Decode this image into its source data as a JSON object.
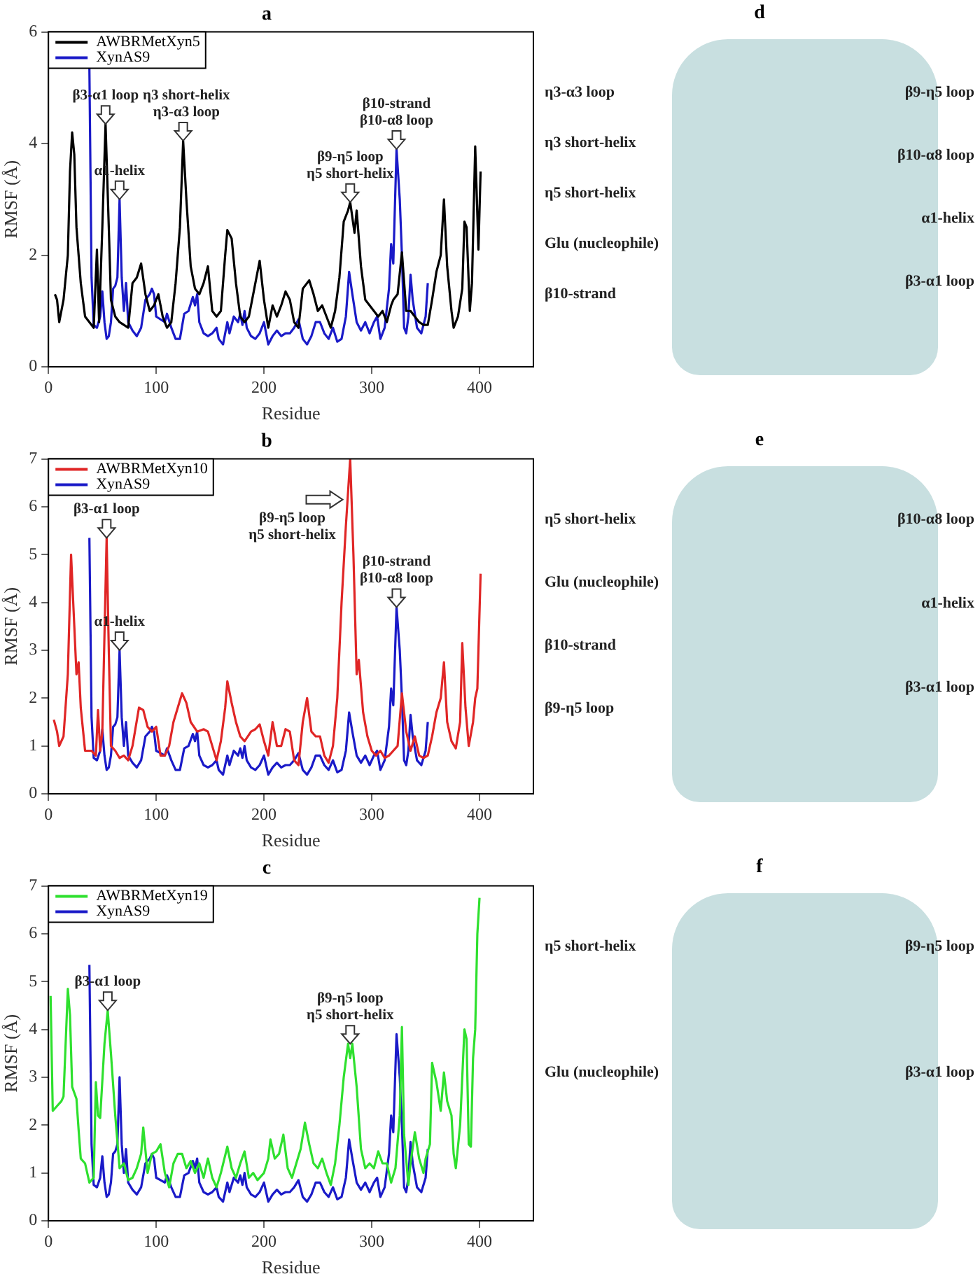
{
  "chart_data": [
    {
      "type": "line",
      "title": "a",
      "xlabel": "Residue",
      "ylabel": "RMSF (Å)",
      "xlim": [
        0,
        450
      ],
      "xticks": [
        0,
        100,
        200,
        300,
        400
      ],
      "ylim": [
        0,
        6
      ],
      "yticks": [
        0,
        2,
        4,
        6
      ],
      "legend": "top left",
      "grid": false,
      "series": [
        {
          "name": "AWBRMetXyn5",
          "color": "#000000",
          "x": [
            6,
            8,
            10,
            14,
            18,
            20,
            22,
            24,
            26,
            30,
            34,
            38,
            42,
            45,
            47,
            50,
            53,
            56,
            58,
            62,
            66,
            70,
            74,
            78,
            82,
            86,
            90,
            94,
            98,
            102,
            106,
            110,
            114,
            118,
            122,
            125,
            128,
            132,
            136,
            140,
            144,
            148,
            152,
            156,
            160,
            164,
            166,
            170,
            174,
            178,
            182,
            186,
            190,
            194,
            196,
            200,
            204,
            208,
            212,
            216,
            220,
            224,
            228,
            232,
            236,
            242,
            246,
            250,
            254,
            258,
            262,
            266,
            270,
            274,
            278,
            280,
            284,
            286,
            290,
            294,
            298,
            302,
            306,
            310,
            314,
            318,
            320,
            324,
            328,
            332,
            336,
            340,
            344,
            348,
            352,
            356,
            360,
            364,
            367,
            370,
            374,
            376,
            380,
            384,
            386,
            388,
            391,
            393,
            396,
            399,
            401
          ],
          "values": [
            1.3,
            1.2,
            0.8,
            1.2,
            2.0,
            3.5,
            4.2,
            3.8,
            2.5,
            1.5,
            0.9,
            0.8,
            0.7,
            2.1,
            0.8,
            2.5,
            4.35,
            2.5,
            1.2,
            0.9,
            0.8,
            0.75,
            0.7,
            1.5,
            1.6,
            1.85,
            1.3,
            1.0,
            1.1,
            1.3,
            0.9,
            0.7,
            0.8,
            1.5,
            2.5,
            4.05,
            3.0,
            1.8,
            1.4,
            1.3,
            1.5,
            1.8,
            1.0,
            0.9,
            1.0,
            2.0,
            2.45,
            2.3,
            1.5,
            0.9,
            0.8,
            0.9,
            1.3,
            1.7,
            1.9,
            1.2,
            0.7,
            1.1,
            0.9,
            1.1,
            1.35,
            1.2,
            0.8,
            0.7,
            1.4,
            1.55,
            1.3,
            1.0,
            1.1,
            0.9,
            0.7,
            1.0,
            1.6,
            2.6,
            2.8,
            2.95,
            2.4,
            2.8,
            1.8,
            1.2,
            1.1,
            1.0,
            0.9,
            1.0,
            0.8,
            1.1,
            1.2,
            1.3,
            2.05,
            1.0,
            1.0,
            0.9,
            0.8,
            0.75,
            0.75,
            1.2,
            1.7,
            2.0,
            3.0,
            1.8,
            1.0,
            0.7,
            0.9,
            1.4,
            2.6,
            2.5,
            1.0,
            1.5,
            3.95,
            2.1,
            3.5
          ]
        },
        {
          "name": "XynAS9",
          "color": "#1a1ac8",
          "x": [
            38,
            40,
            42,
            45,
            48,
            50,
            52,
            54,
            56,
            58,
            60,
            62,
            64,
            66,
            68,
            70,
            72,
            74,
            78,
            82,
            86,
            90,
            94,
            96,
            98,
            100,
            104,
            108,
            110,
            114,
            118,
            122,
            126,
            130,
            134,
            136,
            138,
            140,
            144,
            148,
            152,
            156,
            158,
            162,
            166,
            168,
            172,
            176,
            178,
            180,
            182,
            184,
            188,
            192,
            196,
            200,
            204,
            208,
            212,
            216,
            220,
            224,
            228,
            232,
            236,
            240,
            244,
            248,
            252,
            256,
            260,
            264,
            268,
            272,
            276,
            279,
            282,
            286,
            290,
            294,
            298,
            302,
            305,
            308,
            312,
            316,
            318,
            320,
            323,
            326,
            328,
            330,
            332,
            334,
            336,
            338,
            342,
            346,
            350,
            352
          ],
          "values": [
            5.35,
            1.6,
            0.75,
            0.7,
            0.9,
            1.35,
            0.8,
            0.5,
            0.55,
            0.8,
            1.4,
            1.45,
            1.6,
            3.0,
            1.6,
            1.0,
            1.5,
            0.8,
            0.65,
            0.55,
            0.7,
            1.2,
            1.3,
            1.4,
            1.3,
            0.9,
            0.85,
            0.8,
            0.95,
            0.7,
            0.5,
            0.5,
            0.95,
            1.0,
            1.25,
            1.1,
            1.3,
            0.8,
            0.6,
            0.55,
            0.6,
            0.7,
            0.5,
            0.4,
            0.8,
            0.6,
            0.9,
            0.8,
            0.95,
            0.75,
            1.0,
            0.7,
            0.55,
            0.5,
            0.6,
            0.8,
            0.4,
            0.55,
            0.65,
            0.55,
            0.6,
            0.6,
            0.7,
            0.85,
            0.5,
            0.4,
            0.55,
            0.8,
            0.8,
            0.6,
            0.5,
            0.7,
            0.45,
            0.5,
            0.9,
            1.7,
            1.3,
            0.8,
            0.65,
            0.8,
            0.6,
            0.8,
            0.9,
            0.5,
            0.7,
            1.4,
            2.2,
            1.85,
            3.9,
            3.0,
            2.0,
            0.7,
            0.6,
            0.9,
            1.65,
            1.2,
            0.7,
            0.6,
            0.9,
            1.5
          ]
        }
      ],
      "annotations": [
        {
          "text": "β3-α1 loop",
          "x": 53,
          "y": 4.35
        },
        {
          "text": "α1-helix",
          "x": 66,
          "y": 3.0
        },
        {
          "text": "η3 short-helix\nη3-α3 loop",
          "x": 125,
          "y": 4.05
        },
        {
          "text": "β9-η5 loop\nη5 short-helix",
          "x": 280,
          "y": 2.95
        },
        {
          "text": "β10-strand\nβ10-α8 loop",
          "x": 323,
          "y": 3.9
        }
      ]
    },
    {
      "type": "other",
      "title": "d",
      "annotations": [
        "η3-α3 loop",
        "η3 short-helix",
        "η5 short-helix",
        "Glu (nucleophile)",
        "β10-strand",
        "β9-η5 loop",
        "β10-α8 loop",
        "α1-helix",
        "β3-α1 loop"
      ]
    },
    {
      "type": "line",
      "title": "b",
      "xlabel": "Residue",
      "ylabel": "RMSF (Å)",
      "xlim": [
        0,
        450
      ],
      "xticks": [
        0,
        100,
        200,
        300,
        400
      ],
      "ylim": [
        0,
        7
      ],
      "yticks": [
        0,
        1,
        2,
        3,
        4,
        5,
        6,
        7
      ],
      "legend": "top left",
      "grid": false,
      "series": [
        {
          "name": "AWBRMetXyn10",
          "color": "#e02626",
          "x": [
            5,
            8,
            10,
            14,
            18,
            21,
            24,
            26,
            28,
            30,
            34,
            40,
            44,
            46,
            48,
            50,
            54,
            56,
            58,
            62,
            66,
            70,
            74,
            78,
            84,
            88,
            92,
            96,
            100,
            104,
            108,
            112,
            116,
            120,
            124,
            128,
            132,
            138,
            144,
            148,
            152,
            156,
            160,
            164,
            166,
            170,
            174,
            178,
            182,
            188,
            192,
            196,
            200,
            204,
            208,
            212,
            216,
            220,
            224,
            228,
            232,
            236,
            240,
            244,
            248,
            252,
            256,
            260,
            264,
            268,
            272,
            276,
            280,
            283,
            286,
            288,
            292,
            296,
            300,
            304,
            308,
            312,
            316,
            320,
            324,
            328,
            332,
            336,
            340,
            344,
            348,
            352,
            356,
            360,
            364,
            367,
            370,
            374,
            378,
            382,
            384,
            387,
            390,
            394,
            396,
            398,
            401
          ],
          "values": [
            1.55,
            1.3,
            1.0,
            1.2,
            2.5,
            5.0,
            3.5,
            2.5,
            2.75,
            1.8,
            0.9,
            0.9,
            0.8,
            1.75,
            0.9,
            1.3,
            5.35,
            3.0,
            1.0,
            0.9,
            0.75,
            0.8,
            0.7,
            1.0,
            1.8,
            1.75,
            1.4,
            1.3,
            1.4,
            0.8,
            0.8,
            1.0,
            1.5,
            1.8,
            2.1,
            1.9,
            1.5,
            1.3,
            1.35,
            1.3,
            1.0,
            0.7,
            1.1,
            1.8,
            2.35,
            1.9,
            1.5,
            1.2,
            1.1,
            1.3,
            1.35,
            1.45,
            1.1,
            0.8,
            1.5,
            1.0,
            1.0,
            1.35,
            1.3,
            0.7,
            0.6,
            1.5,
            2.0,
            1.3,
            1.2,
            1.2,
            0.8,
            0.65,
            1.0,
            2.0,
            4.0,
            5.6,
            7.0,
            5.0,
            2.5,
            2.8,
            1.7,
            1.2,
            0.9,
            0.8,
            0.9,
            0.75,
            0.8,
            0.9,
            1.0,
            2.1,
            1.3,
            0.9,
            1.2,
            0.8,
            0.75,
            0.8,
            1.2,
            1.7,
            2.0,
            2.75,
            1.5,
            1.1,
            0.95,
            1.5,
            3.15,
            1.8,
            1.0,
            1.5,
            2.0,
            2.2,
            4.6
          ]
        },
        {
          "name": "XynAS9",
          "color": "#1a1ac8",
          "x": [
            38,
            40,
            42,
            45,
            48,
            50,
            52,
            54,
            56,
            58,
            60,
            62,
            64,
            66,
            68,
            70,
            72,
            74,
            78,
            82,
            86,
            90,
            94,
            96,
            98,
            100,
            104,
            108,
            110,
            114,
            118,
            122,
            126,
            130,
            134,
            136,
            138,
            140,
            144,
            148,
            152,
            156,
            158,
            162,
            166,
            168,
            172,
            176,
            178,
            180,
            182,
            184,
            188,
            192,
            196,
            200,
            204,
            208,
            212,
            216,
            220,
            224,
            228,
            232,
            236,
            240,
            244,
            248,
            252,
            256,
            260,
            264,
            268,
            272,
            276,
            279,
            282,
            286,
            290,
            294,
            298,
            302,
            305,
            308,
            312,
            316,
            318,
            320,
            323,
            326,
            328,
            330,
            332,
            334,
            336,
            338,
            342,
            346,
            350,
            352
          ],
          "values": [
            5.35,
            1.6,
            0.75,
            0.7,
            0.9,
            1.35,
            0.8,
            0.5,
            0.55,
            0.8,
            1.4,
            1.45,
            1.6,
            3.0,
            1.6,
            1.0,
            1.5,
            0.8,
            0.65,
            0.55,
            0.7,
            1.2,
            1.3,
            1.4,
            1.3,
            0.9,
            0.85,
            0.8,
            0.95,
            0.7,
            0.5,
            0.5,
            0.95,
            1.0,
            1.25,
            1.1,
            1.3,
            0.8,
            0.6,
            0.55,
            0.6,
            0.7,
            0.5,
            0.4,
            0.8,
            0.6,
            0.9,
            0.8,
            0.95,
            0.75,
            1.0,
            0.7,
            0.55,
            0.5,
            0.6,
            0.8,
            0.4,
            0.55,
            0.65,
            0.55,
            0.6,
            0.6,
            0.7,
            0.85,
            0.5,
            0.4,
            0.55,
            0.8,
            0.8,
            0.6,
            0.5,
            0.7,
            0.45,
            0.5,
            0.9,
            1.7,
            1.3,
            0.8,
            0.65,
            0.8,
            0.6,
            0.8,
            0.9,
            0.5,
            0.7,
            1.4,
            2.2,
            1.85,
            3.9,
            3.0,
            2.0,
            0.7,
            0.6,
            0.9,
            1.65,
            1.2,
            0.7,
            0.6,
            0.9,
            1.5
          ]
        }
      ],
      "annotations": [
        {
          "text": "β3-α1 loop",
          "x": 54,
          "y": 5.35
        },
        {
          "text": "α1-helix",
          "x": 66,
          "y": 3.0
        },
        {
          "text": "β9-η5 loop\nη5 short-helix",
          "x": 273,
          "y": 6.15
        },
        {
          "text": "β10-strand\nβ10-α8 loop",
          "x": 323,
          "y": 3.9
        }
      ]
    },
    {
      "type": "other",
      "title": "e",
      "annotations": [
        "η5 short-helix",
        "Glu (nucleophile)",
        "β10-strand",
        "β9-η5 loop",
        "β10-α8 loop",
        "α1-helix",
        "β3-α1 loop"
      ]
    },
    {
      "type": "line",
      "title": "c",
      "xlabel": "Residue",
      "ylabel": "RMSF (Å)",
      "xlim": [
        0,
        450
      ],
      "xticks": [
        0,
        100,
        200,
        300,
        400
      ],
      "ylim": [
        0,
        7
      ],
      "yticks": [
        0,
        1,
        2,
        3,
        4,
        5,
        6,
        7
      ],
      "legend": "top left",
      "grid": false,
      "series": [
        {
          "name": "AWBRMetXyn19",
          "color": "#2ee02e",
          "x": [
            2,
            4,
            8,
            12,
            14,
            18,
            20,
            22,
            26,
            28,
            30,
            34,
            38,
            42,
            44,
            46,
            48,
            52,
            55,
            58,
            62,
            66,
            70,
            74,
            78,
            82,
            86,
            88,
            92,
            96,
            100,
            104,
            108,
            112,
            116,
            120,
            124,
            128,
            132,
            136,
            140,
            144,
            148,
            152,
            156,
            160,
            166,
            170,
            174,
            178,
            182,
            186,
            190,
            194,
            200,
            204,
            206,
            210,
            214,
            218,
            222,
            226,
            230,
            234,
            238,
            242,
            246,
            250,
            254,
            258,
            262,
            266,
            270,
            274,
            278,
            280,
            282,
            286,
            290,
            294,
            298,
            302,
            306,
            310,
            314,
            318,
            322,
            326,
            328,
            330,
            334,
            336,
            340,
            344,
            348,
            350,
            354,
            356,
            360,
            364,
            367,
            370,
            374,
            376,
            378,
            382,
            386,
            388,
            390,
            392,
            394,
            396,
            398,
            400
          ],
          "values": [
            4.7,
            2.3,
            2.4,
            2.5,
            2.6,
            4.85,
            4.3,
            2.8,
            2.55,
            1.9,
            1.3,
            1.2,
            0.8,
            0.9,
            2.9,
            2.2,
            2.15,
            3.7,
            4.4,
            3.5,
            2.2,
            1.1,
            1.2,
            0.85,
            0.9,
            1.1,
            1.4,
            1.95,
            1.0,
            1.4,
            1.45,
            1.6,
            1.0,
            0.7,
            1.2,
            1.4,
            1.4,
            1.1,
            1.25,
            1.0,
            1.2,
            0.9,
            1.3,
            0.9,
            0.7,
            1.0,
            1.55,
            1.1,
            0.9,
            1.2,
            1.45,
            0.9,
            1.0,
            0.85,
            1.0,
            1.3,
            1.7,
            1.3,
            1.4,
            1.8,
            1.1,
            0.9,
            1.2,
            1.5,
            2.05,
            1.6,
            1.2,
            1.1,
            1.3,
            1.0,
            0.75,
            1.2,
            2.0,
            3.0,
            3.7,
            3.4,
            3.7,
            2.8,
            1.5,
            1.1,
            1.2,
            1.1,
            1.45,
            1.2,
            1.2,
            0.8,
            1.1,
            2.2,
            4.05,
            1.8,
            0.75,
            1.2,
            1.85,
            1.3,
            1.0,
            1.3,
            1.6,
            3.3,
            2.9,
            2.3,
            3.1,
            2.5,
            2.2,
            1.4,
            1.1,
            2.0,
            4.0,
            3.8,
            1.6,
            1.55,
            3.4,
            4.0,
            6.0,
            6.75
          ]
        },
        {
          "name": "XynAS9",
          "color": "#1a1ac8",
          "x": [
            38,
            40,
            42,
            45,
            48,
            50,
            52,
            54,
            56,
            58,
            60,
            62,
            64,
            66,
            68,
            70,
            72,
            74,
            78,
            82,
            86,
            90,
            94,
            96,
            98,
            100,
            104,
            108,
            110,
            114,
            118,
            122,
            126,
            130,
            134,
            136,
            138,
            140,
            144,
            148,
            152,
            156,
            158,
            162,
            166,
            168,
            172,
            176,
            178,
            180,
            182,
            184,
            188,
            192,
            196,
            200,
            204,
            208,
            212,
            216,
            220,
            224,
            228,
            232,
            236,
            240,
            244,
            248,
            252,
            256,
            260,
            264,
            268,
            272,
            276,
            279,
            282,
            286,
            290,
            294,
            298,
            302,
            305,
            308,
            312,
            316,
            318,
            320,
            323,
            326,
            328,
            330,
            332,
            334,
            336,
            338,
            342,
            346,
            350,
            352
          ],
          "values": [
            5.35,
            1.6,
            0.75,
            0.7,
            0.9,
            1.35,
            0.8,
            0.5,
            0.55,
            0.8,
            1.4,
            1.45,
            1.6,
            3.0,
            1.6,
            1.0,
            1.5,
            0.8,
            0.65,
            0.55,
            0.7,
            1.2,
            1.3,
            1.4,
            1.3,
            0.9,
            0.85,
            0.8,
            0.95,
            0.7,
            0.5,
            0.5,
            0.95,
            1.0,
            1.25,
            1.1,
            1.3,
            0.8,
            0.6,
            0.55,
            0.6,
            0.7,
            0.5,
            0.4,
            0.8,
            0.6,
            0.9,
            0.8,
            0.95,
            0.75,
            1.0,
            0.7,
            0.55,
            0.5,
            0.6,
            0.8,
            0.4,
            0.55,
            0.65,
            0.55,
            0.6,
            0.6,
            0.7,
            0.85,
            0.5,
            0.4,
            0.55,
            0.8,
            0.8,
            0.6,
            0.5,
            0.7,
            0.45,
            0.5,
            0.9,
            1.7,
            1.3,
            0.8,
            0.65,
            0.8,
            0.6,
            0.8,
            0.9,
            0.5,
            0.7,
            1.4,
            2.2,
            1.85,
            3.9,
            3.0,
            2.0,
            0.7,
            0.6,
            0.9,
            1.65,
            1.2,
            0.7,
            0.6,
            0.9,
            1.5
          ]
        }
      ],
      "annotations": [
        {
          "text": "β3-α1 loop",
          "x": 55,
          "y": 4.4
        },
        {
          "text": "β9-η5 loop\nη5 short-helix",
          "x": 280,
          "y": 3.7
        }
      ]
    },
    {
      "type": "other",
      "title": "f",
      "annotations": [
        "η5 short-helix",
        "Glu (nucleophile)",
        "β9-η5 loop",
        "β3-α1 loop"
      ]
    }
  ]
}
